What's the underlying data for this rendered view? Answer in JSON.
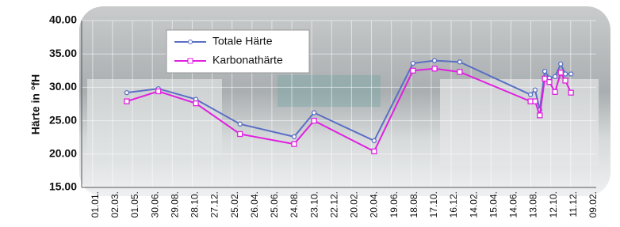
{
  "chart_data": {
    "type": "line",
    "y_label": "Härte in °fH",
    "x": [
      103,
      198,
      311,
      444,
      607,
      667,
      848,
      965,
      1030,
      1106,
      1319,
      1333,
      1347,
      1362,
      1376,
      1393,
      1410,
      1424,
      1441
    ],
    "series": [
      {
        "name": "Totale Härte",
        "color": "#5a6fc4",
        "marker_fill": "#ffffff",
        "values": [
          29.2,
          29.8,
          28.2,
          24.5,
          22.6,
          26.2,
          22.0,
          33.6,
          34.0,
          33.8,
          28.9,
          29.6,
          26.6,
          32.4,
          31.4,
          31.6,
          33.5,
          32.0,
          32.0
        ]
      },
      {
        "name": "Karbonathärte",
        "color": "#e020e0",
        "marker_fill": "#ffffff",
        "values": [
          27.9,
          29.4,
          27.6,
          23.0,
          21.5,
          25.0,
          20.4,
          32.5,
          32.8,
          32.3,
          27.9,
          27.9,
          25.8,
          31.3,
          30.8,
          29.3,
          32.2,
          31.0,
          29.2
        ]
      }
    ],
    "xlim": [
      -33,
      1517
    ],
    "xticks": [
      {
        "value": 0,
        "label": "01.01."
      },
      {
        "value": 60,
        "label": "02.03."
      },
      {
        "value": 120,
        "label": "01.05."
      },
      {
        "value": 180,
        "label": "30.06."
      },
      {
        "value": 240,
        "label": "29.08."
      },
      {
        "value": 300,
        "label": "28.10."
      },
      {
        "value": 360,
        "label": "27.12."
      },
      {
        "value": 420,
        "label": "25.02."
      },
      {
        "value": 480,
        "label": "26.04."
      },
      {
        "value": 540,
        "label": "25.06."
      },
      {
        "value": 600,
        "label": "24.08."
      },
      {
        "value": 660,
        "label": "23.10."
      },
      {
        "value": 720,
        "label": "22.12."
      },
      {
        "value": 780,
        "label": "20.02."
      },
      {
        "value": 840,
        "label": "20.04."
      },
      {
        "value": 900,
        "label": "19.06."
      },
      {
        "value": 960,
        "label": "18.08."
      },
      {
        "value": 1020,
        "label": "17.10."
      },
      {
        "value": 1080,
        "label": "16.12."
      },
      {
        "value": 1140,
        "label": "14.02."
      },
      {
        "value": 1200,
        "label": "15.04."
      },
      {
        "value": 1260,
        "label": "14.06."
      },
      {
        "value": 1320,
        "label": "13.08."
      },
      {
        "value": 1380,
        "label": "12.10."
      },
      {
        "value": 1440,
        "label": "11.12."
      },
      {
        "value": 1500,
        "label": "09.02."
      }
    ],
    "ylim": [
      15,
      40
    ],
    "yticks": [
      {
        "value": 15,
        "label": "15.00"
      },
      {
        "value": 20,
        "label": "20.00"
      },
      {
        "value": 25,
        "label": "25.00"
      },
      {
        "value": 30,
        "label": "30.00"
      },
      {
        "value": 35,
        "label": "35.00"
      },
      {
        "value": 40,
        "label": "40.00"
      }
    ],
    "grid": true,
    "legend": "top-left"
  }
}
